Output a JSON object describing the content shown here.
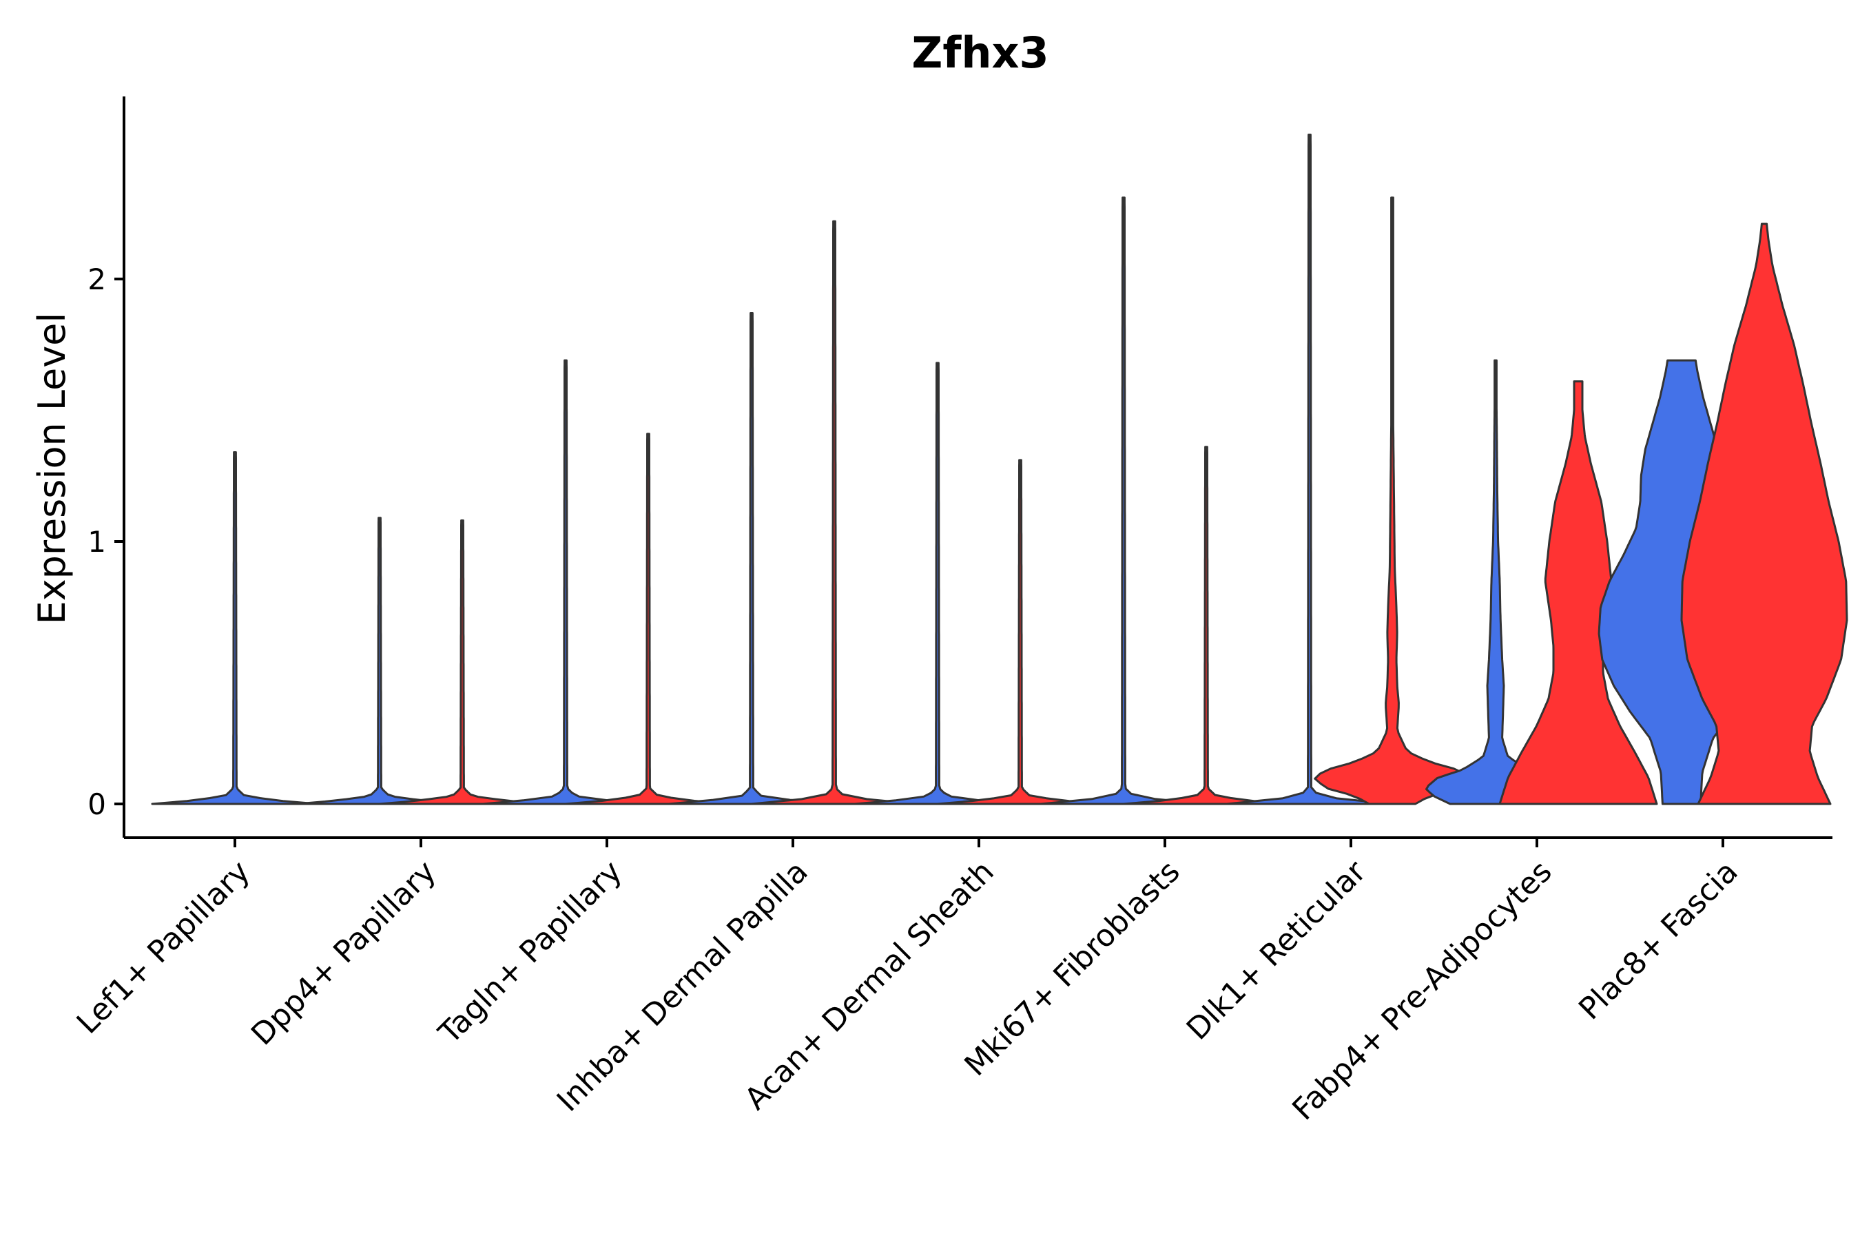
{
  "chart_data": {
    "type": "violin",
    "title": "Zfhx3",
    "xlabel": "",
    "ylabel": "Expression Level",
    "ylim": [
      -0.13,
      2.7
    ],
    "yticks": [
      0,
      1,
      2
    ],
    "grid": false,
    "legend": "none",
    "colors": {
      "blue": "#4472E8",
      "red": "#FF3333",
      "outline": "#333333"
    },
    "categories": [
      "Lef1+ Papillary",
      "Dpp4+ Papillary",
      "Tagln+ Papillary",
      "Inhba+ Dermal Papilla",
      "Acan+ Dermal Sheath",
      "Mki67+ Fibroblasts",
      "Dlk1+ Reticular",
      "Fabp4+ Pre-Adipocytes",
      "Plac8+ Fascia"
    ],
    "violins": [
      {
        "category": 0,
        "side": "single",
        "color": "blue",
        "max": 1.34
      },
      {
        "category": 1,
        "side": "left",
        "color": "blue",
        "max": 1.09
      },
      {
        "category": 1,
        "side": "right",
        "color": "red",
        "max": 1.08
      },
      {
        "category": 2,
        "side": "left",
        "color": "blue",
        "max": 1.69
      },
      {
        "category": 2,
        "side": "right",
        "color": "red",
        "max": 1.41
      },
      {
        "category": 3,
        "side": "left",
        "color": "blue",
        "max": 1.87
      },
      {
        "category": 3,
        "side": "right",
        "color": "red",
        "max": 2.22
      },
      {
        "category": 4,
        "side": "left",
        "color": "blue",
        "max": 1.68
      },
      {
        "category": 4,
        "side": "right",
        "color": "red",
        "max": 1.31
      },
      {
        "category": 5,
        "side": "left",
        "color": "blue",
        "max": 2.31
      },
      {
        "category": 5,
        "side": "right",
        "color": "red",
        "max": 1.36
      },
      {
        "category": 6,
        "side": "left",
        "color": "blue",
        "max": 2.55
      },
      {
        "category": 6,
        "side": "right",
        "color": "red",
        "max": 2.31,
        "profile": [
          [
            0,
            0.28
          ],
          [
            0.03,
            0.45
          ],
          [
            0.06,
            0.8
          ],
          [
            0.1,
            0.95
          ],
          [
            0.13,
            0.8
          ],
          [
            0.16,
            0.45
          ],
          [
            0.2,
            0.18
          ],
          [
            0.28,
            0.06
          ],
          [
            0.38,
            0.08
          ],
          [
            0.45,
            0.06
          ],
          [
            0.55,
            0.05
          ],
          [
            0.65,
            0.06
          ],
          [
            0.75,
            0.05
          ],
          [
            0.9,
            0.03
          ],
          [
            1.2,
            0.02
          ],
          [
            1.5,
            0.01
          ],
          [
            2.31,
            0.006
          ]
        ]
      },
      {
        "category": 7,
        "side": "left",
        "color": "blue",
        "max": 1.69,
        "profile": [
          [
            0,
            0.55
          ],
          [
            0.03,
            0.75
          ],
          [
            0.06,
            0.85
          ],
          [
            0.1,
            0.7
          ],
          [
            0.13,
            0.4
          ],
          [
            0.18,
            0.15
          ],
          [
            0.25,
            0.08
          ],
          [
            0.35,
            0.09
          ],
          [
            0.45,
            0.1
          ],
          [
            0.55,
            0.08
          ],
          [
            0.7,
            0.06
          ],
          [
            0.85,
            0.05
          ],
          [
            1.0,
            0.03
          ],
          [
            1.2,
            0.02
          ],
          [
            1.4,
            0.015
          ],
          [
            1.69,
            0.006
          ]
        ]
      },
      {
        "category": 7,
        "side": "right",
        "color": "red",
        "max": 1.61,
        "profile": [
          [
            0,
            0.95
          ],
          [
            0.1,
            0.85
          ],
          [
            0.2,
            0.68
          ],
          [
            0.3,
            0.5
          ],
          [
            0.4,
            0.36
          ],
          [
            0.5,
            0.3
          ],
          [
            0.6,
            0.3
          ],
          [
            0.7,
            0.33
          ],
          [
            0.85,
            0.4
          ],
          [
            1.0,
            0.35
          ],
          [
            1.15,
            0.28
          ],
          [
            1.3,
            0.15
          ],
          [
            1.4,
            0.08
          ],
          [
            1.5,
            0.05
          ],
          [
            1.61,
            0.05
          ]
        ]
      },
      {
        "category": 8,
        "side": "left",
        "color": "blue",
        "max": 1.69,
        "profile": [
          [
            0,
            0.23
          ],
          [
            0.12,
            0.25
          ],
          [
            0.25,
            0.38
          ],
          [
            0.35,
            0.62
          ],
          [
            0.45,
            0.82
          ],
          [
            0.55,
            0.96
          ],
          [
            0.65,
            1.0
          ],
          [
            0.75,
            0.98
          ],
          [
            0.85,
            0.87
          ],
          [
            0.95,
            0.7
          ],
          [
            1.05,
            0.55
          ],
          [
            1.15,
            0.5
          ],
          [
            1.25,
            0.49
          ],
          [
            1.35,
            0.44
          ],
          [
            1.45,
            0.35
          ],
          [
            1.55,
            0.26
          ],
          [
            1.65,
            0.19
          ],
          [
            1.69,
            0.17
          ]
        ]
      },
      {
        "category": 8,
        "side": "right",
        "color": "red",
        "max": 2.21,
        "profile": [
          [
            0,
            0.8
          ],
          [
            0.1,
            0.65
          ],
          [
            0.2,
            0.55
          ],
          [
            0.3,
            0.58
          ],
          [
            0.4,
            0.75
          ],
          [
            0.55,
            0.93
          ],
          [
            0.7,
            1.0
          ],
          [
            0.85,
            0.99
          ],
          [
            1.0,
            0.9
          ],
          [
            1.15,
            0.78
          ],
          [
            1.3,
            0.68
          ],
          [
            1.45,
            0.57
          ],
          [
            1.6,
            0.47
          ],
          [
            1.75,
            0.36
          ],
          [
            1.9,
            0.22
          ],
          [
            2.05,
            0.1
          ],
          [
            2.15,
            0.05
          ],
          [
            2.21,
            0.03
          ]
        ]
      }
    ]
  }
}
